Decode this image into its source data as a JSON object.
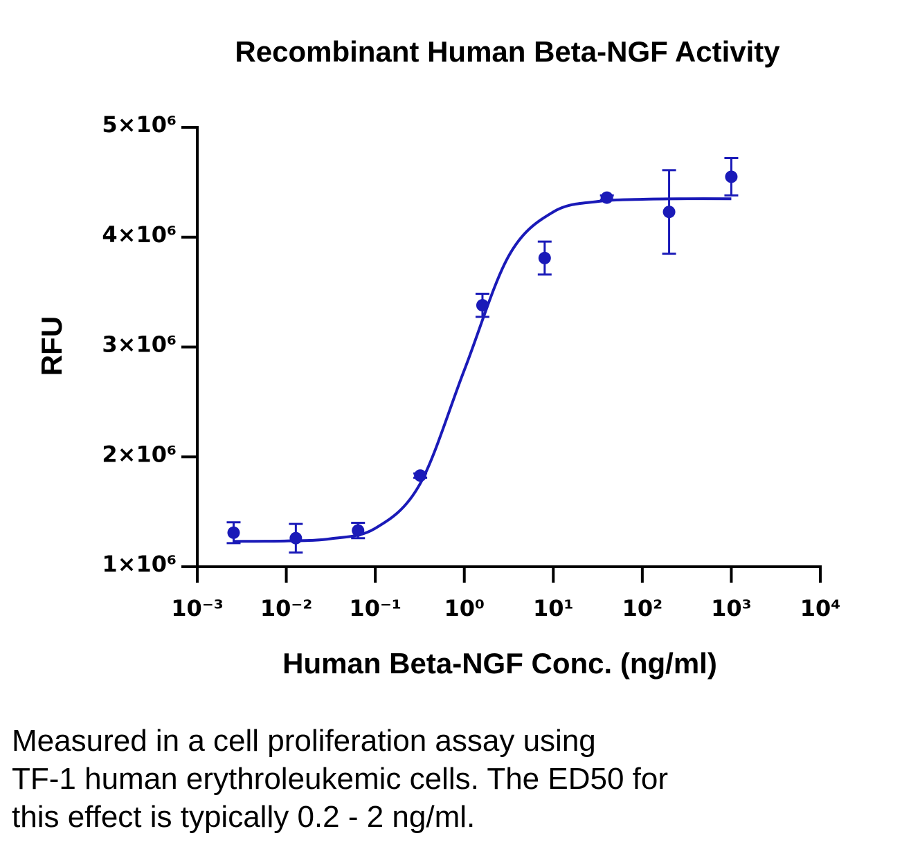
{
  "chart_data": {
    "type": "scatter",
    "title": "Recombinant Human Beta-NGF Activity",
    "x_label": "Human Beta-NGF Conc. (ng/ml)",
    "y_label": "RFU",
    "log_x": true,
    "xlim": [
      0.001,
      10000
    ],
    "xticks": [
      {
        "value": 0.001,
        "label": "10⁻³"
      },
      {
        "value": 0.01,
        "label": "10⁻²"
      },
      {
        "value": 0.1,
        "label": "10⁻¹"
      },
      {
        "value": 1,
        "label": "10⁰"
      },
      {
        "value": 10,
        "label": "10¹"
      },
      {
        "value": 100,
        "label": "10²"
      },
      {
        "value": 1000,
        "label": "10³"
      },
      {
        "value": 10000,
        "label": "10⁴"
      }
    ],
    "ylim": [
      1000000,
      5000000
    ],
    "yticks": [
      {
        "value": 1000000,
        "label": "1×10⁶"
      },
      {
        "value": 2000000,
        "label": "2×10⁶"
      },
      {
        "value": 3000000,
        "label": "3×10⁶"
      },
      {
        "value": 4000000,
        "label": "4×10⁶"
      },
      {
        "value": 5000000,
        "label": "5×10⁶"
      }
    ],
    "series": [
      {
        "color": "#1a1ab8",
        "x": [
          0.00256,
          0.0128,
          0.064,
          0.32,
          1.6,
          8,
          40,
          200,
          1000
        ],
        "values": [
          1310000,
          1260000,
          1330000,
          1830000,
          3380000,
          3810000,
          4360000,
          4230000,
          4550000
        ],
        "errors": [
          95000,
          130000,
          70000,
          20000,
          105000,
          150000,
          20000,
          380000,
          170000
        ]
      }
    ],
    "fit": {
      "color": "#1a1ab8",
      "x": [
        0.0025,
        0.01,
        0.0316,
        0.1,
        0.316,
        1,
        3.16,
        10,
        31.6,
        100,
        316,
        1000
      ],
      "values": [
        1231000,
        1235000,
        1255000,
        1350000,
        1750000,
        2790000,
        3830000,
        4230000,
        4325000,
        4345000,
        4350000,
        4350000
      ]
    }
  },
  "caption": [
    "Measured in a cell proliferation assay using",
    "TF-1 human erythroleukemic cells. The ED50 for",
    "this effect is typically 0.2 - 2 ng/ml."
  ]
}
